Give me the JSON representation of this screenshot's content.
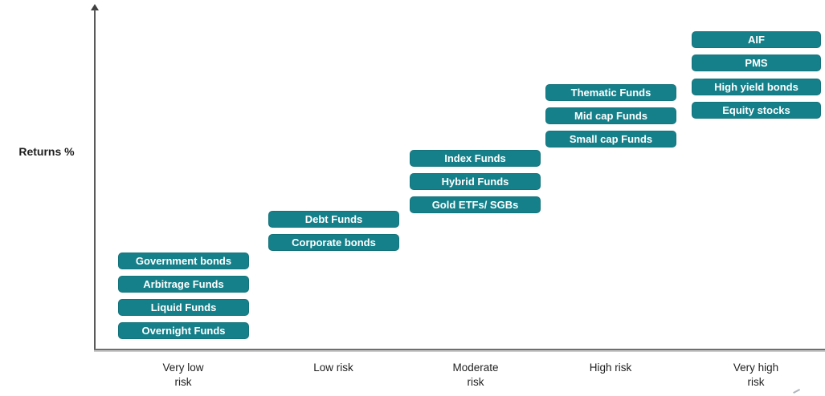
{
  "colors": {
    "accent_teal": "#16808A",
    "axis_line": "#5A5A5A",
    "axis_text": "#1F1F1F",
    "box_text": "#FFFFFF"
  },
  "axis": {
    "y_label": "Returns %",
    "x_categories": [
      {
        "label": "Very low risk",
        "lines": "Very low\nrisk"
      },
      {
        "label": "Low risk",
        "lines": "Low risk"
      },
      {
        "label": "Moderate risk",
        "lines": "Moderate\nrisk"
      },
      {
        "label": "High risk",
        "lines": "High risk"
      },
      {
        "label": "Very high risk",
        "lines": "Very high\nrisk"
      }
    ]
  },
  "chart_data": {
    "type": "table",
    "title": "",
    "xlabel": "",
    "ylabel": "Returns %",
    "categories": [
      "Very low risk",
      "Low risk",
      "Moderate risk",
      "High risk",
      "Very high risk"
    ],
    "groups": [
      {
        "category": "Very low risk",
        "risk_rank": 1,
        "items_top_to_bottom": [
          "Government bonds",
          "Arbitrage Funds",
          "Liquid Funds",
          "Overnight Funds"
        ]
      },
      {
        "category": "Low risk",
        "risk_rank": 2,
        "items_top_to_bottom": [
          "Debt Funds",
          "Corporate bonds"
        ]
      },
      {
        "category": "Moderate risk",
        "risk_rank": 3,
        "items_top_to_bottom": [
          "Index Funds",
          "Hybrid Funds",
          "Gold ETFs/ SGBs"
        ]
      },
      {
        "category": "High risk",
        "risk_rank": 4,
        "items_top_to_bottom": [
          "Thematic Funds",
          "Mid cap Funds",
          "Small cap Funds"
        ]
      },
      {
        "category": "Very high risk",
        "risk_rank": 5,
        "items_top_to_bottom": [
          "AIF",
          "PMS",
          "High yield bonds",
          "Equity stocks"
        ]
      }
    ],
    "layout_hints": {
      "pattern": "staircase ascending left-to-right",
      "legend": "none",
      "grid": "off",
      "y_axis": "unlabeled arrow axis (Returns %)",
      "x_axis": "five unlabeled-tick risk categories"
    }
  }
}
